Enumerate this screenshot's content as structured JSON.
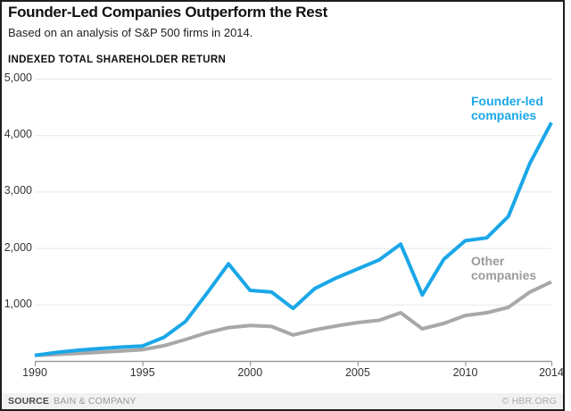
{
  "header": {
    "title": "Founder-Led Companies Outperform the Rest",
    "subtitle": "Based on an analysis of S&P 500 firms in 2014."
  },
  "chart_data": {
    "type": "line",
    "title": "INDEXED TOTAL SHAREHOLDER RETURN",
    "x": [
      1990,
      1991,
      1992,
      1993,
      1994,
      1995,
      1996,
      1997,
      1998,
      1999,
      2000,
      2001,
      2002,
      2003,
      2004,
      2005,
      2006,
      2007,
      2008,
      2009,
      2010,
      2011,
      2012,
      2013,
      2014
    ],
    "series": [
      {
        "name": "Founder-led companies",
        "color": "#1aa7e8",
        "values": [
          100,
          150,
          190,
          220,
          245,
          265,
          420,
          700,
          1200,
          1720,
          1250,
          1220,
          930,
          1280,
          1470,
          1630,
          1790,
          2070,
          1170,
          1800,
          2130,
          2180,
          2560,
          3500,
          4220
        ]
      },
      {
        "name": "Other companies",
        "color": "#a8a8a8",
        "values": [
          100,
          115,
          135,
          155,
          175,
          200,
          270,
          380,
          500,
          590,
          630,
          610,
          460,
          550,
          620,
          680,
          720,
          855,
          570,
          665,
          805,
          855,
          950,
          1220,
          1400
        ]
      }
    ],
    "xticks": [
      1990,
      1995,
      2000,
      2005,
      2010,
      2014
    ],
    "yticks": [
      1000,
      2000,
      3000,
      4000,
      5000
    ],
    "xlim": [
      1990,
      2014
    ],
    "ylim": [
      0,
      5000
    ],
    "grid": "horizontal",
    "legend_position": "inline-labels",
    "colors": {
      "gridline": "#e8e8e8",
      "axis": "#9b9b9b"
    }
  },
  "labels": {
    "founder_line1": "Founder-led",
    "founder_line2": "companies",
    "other_line1": "Other",
    "other_line2": "companies"
  },
  "footer": {
    "source_label": "SOURCE",
    "source_value": "BAIN & COMPANY",
    "credit": "© HBR.ORG"
  }
}
